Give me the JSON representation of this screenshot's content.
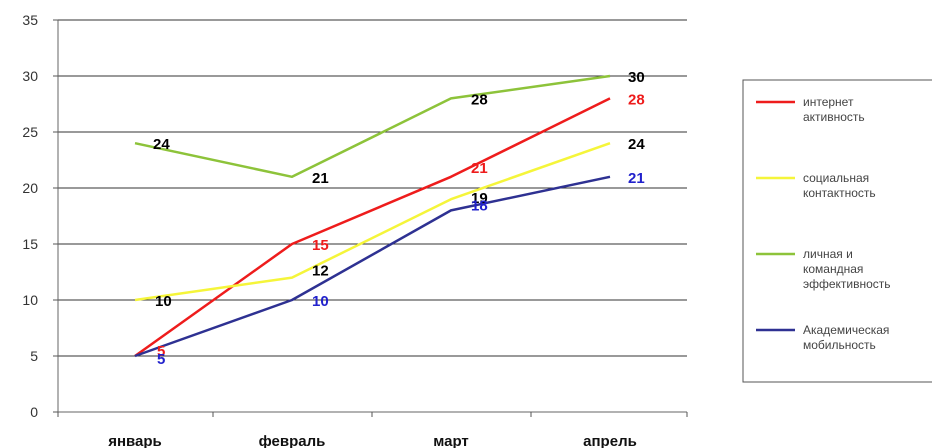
{
  "chart_data": {
    "type": "line",
    "categories": [
      "январь",
      "февраль",
      "март",
      "апрель"
    ],
    "ylim": [
      0,
      35
    ],
    "yticks": [
      0,
      5,
      10,
      15,
      20,
      25,
      30,
      35
    ],
    "grid": true,
    "legend_position": "right",
    "series": [
      {
        "name": "интернет активность",
        "name_lines": [
          "интернет",
          "активность"
        ],
        "color": "#ee1c1c",
        "label_color": "#ee1c1c",
        "values": [
          5,
          15,
          21,
          28
        ],
        "labels": [
          "5",
          "15",
          "21",
          "28"
        ]
      },
      {
        "name": "социальная контактность",
        "name_lines": [
          "социальная",
          "контактность"
        ],
        "color": "#f5f53a",
        "label_color": "#000000",
        "values": [
          10,
          12,
          19,
          24
        ],
        "labels": [
          "10",
          "12",
          "19",
          "24"
        ]
      },
      {
        "name": "личная и командная эффективность",
        "name_lines": [
          "личная и",
          "командная",
          "эффективность"
        ],
        "color": "#8dc33a",
        "label_color": "#000000",
        "values": [
          24,
          21,
          28,
          30
        ],
        "labels": [
          "24",
          "21",
          "28",
          "30"
        ]
      },
      {
        "name": "Академическая мобильность",
        "name_lines": [
          "Академическая",
          "мобильность"
        ],
        "color": "#2e3192",
        "label_color": "#2222cc",
        "values": [
          5,
          10,
          18,
          21
        ],
        "labels": [
          "5",
          "10",
          "18",
          "21"
        ]
      }
    ]
  }
}
